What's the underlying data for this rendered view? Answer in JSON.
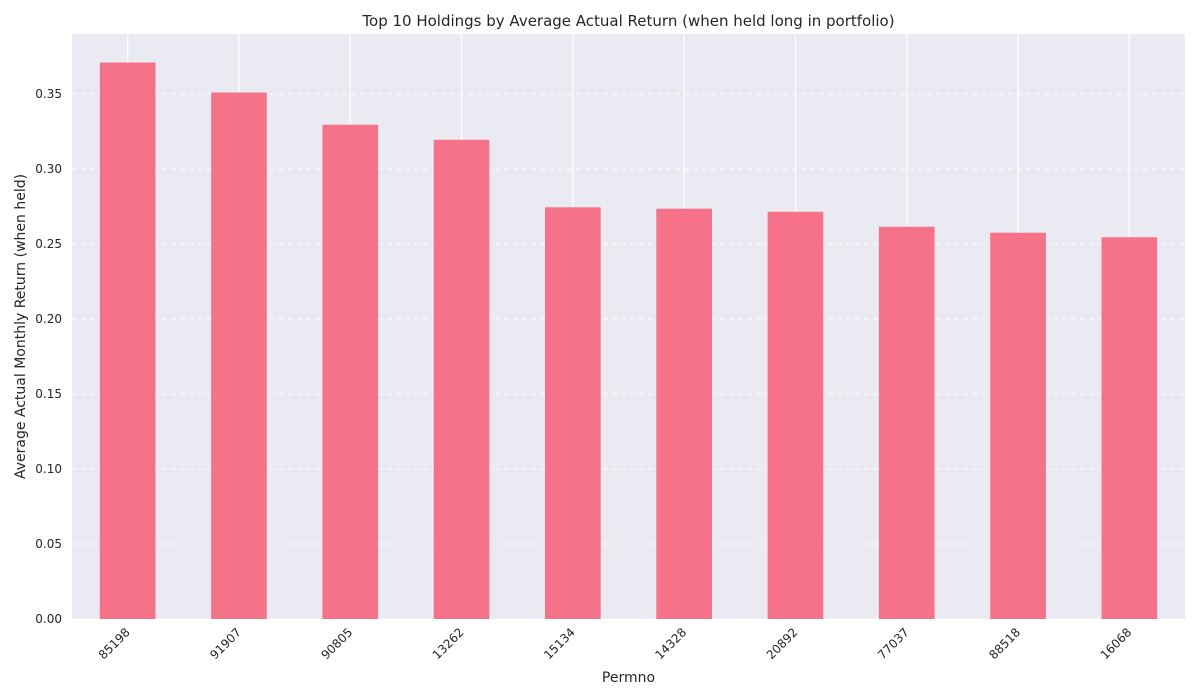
{
  "chart_data": {
    "type": "bar",
    "title": "Top 10 Holdings by Average Actual Return (when held long in portfolio)",
    "xlabel": "Permno",
    "ylabel": "Average Actual Monthly Return (when held)",
    "categories": [
      "85198",
      "91907",
      "90805",
      "13262",
      "15134",
      "14328",
      "20892",
      "77037",
      "88518",
      "16068"
    ],
    "values": [
      0.371,
      0.351,
      0.3295,
      0.3195,
      0.2745,
      0.2735,
      0.2715,
      0.2615,
      0.2575,
      0.2545
    ],
    "ylim": [
      0,
      0.39
    ],
    "yticks": [
      0.0,
      0.05,
      0.1,
      0.15,
      0.2,
      0.25,
      0.3,
      0.35
    ],
    "ytick_labels": [
      "0.00",
      "0.05",
      "0.10",
      "0.15",
      "0.20",
      "0.25",
      "0.30",
      "0.35"
    ],
    "grid": true,
    "colors": {
      "bar": "#f57289",
      "background": "#eaeaf2",
      "grid": "#ffffff"
    }
  }
}
